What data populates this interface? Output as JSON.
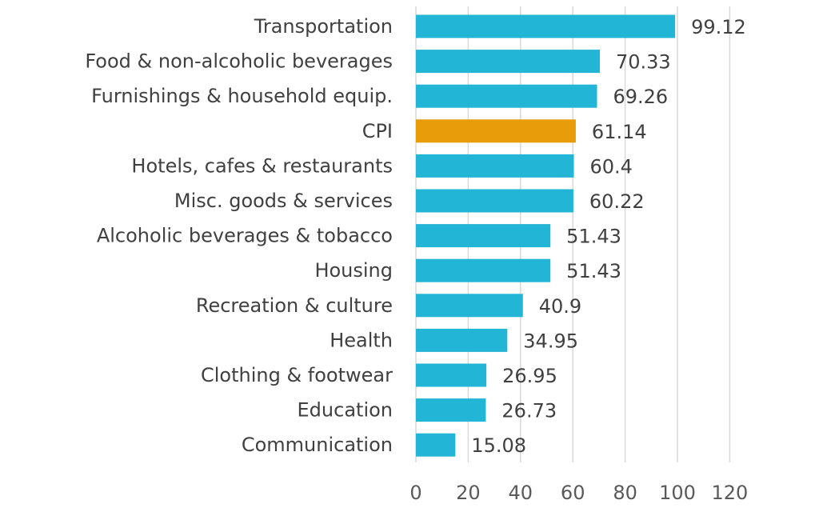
{
  "chart_data": {
    "type": "bar",
    "orientation": "horizontal",
    "title": "",
    "xlabel": "",
    "ylabel": "",
    "xlim": [
      0,
      120
    ],
    "x_ticks": [
      0,
      20,
      40,
      60,
      80,
      100,
      120
    ],
    "grid": true,
    "legend": "none",
    "categories": [
      "Transportation",
      "Food & non-alcoholic beverages",
      "Furnishings & household equip.",
      "CPI",
      "Hotels, cafes & restaurants",
      "Misc. goods & services",
      "Alcoholic beverages & tobacco",
      "Housing",
      "Recreation & culture",
      "Health",
      "Clothing & footwear",
      "Education",
      "Communication"
    ],
    "values": [
      99.12,
      70.33,
      69.26,
      61.14,
      60.4,
      60.22,
      51.43,
      51.43,
      40.9,
      34.95,
      26.95,
      26.73,
      15.08
    ],
    "value_labels": [
      "99.12",
      "70.33",
      "69.26",
      "61.14",
      "60.4",
      "60.22",
      "51.43",
      "51.43",
      "40.9",
      "34.95",
      "26.95",
      "26.73",
      "15.08"
    ],
    "colors": {
      "default": "#23b5d6",
      "highlight": "#e89c09"
    },
    "highlight_category": "CPI"
  }
}
